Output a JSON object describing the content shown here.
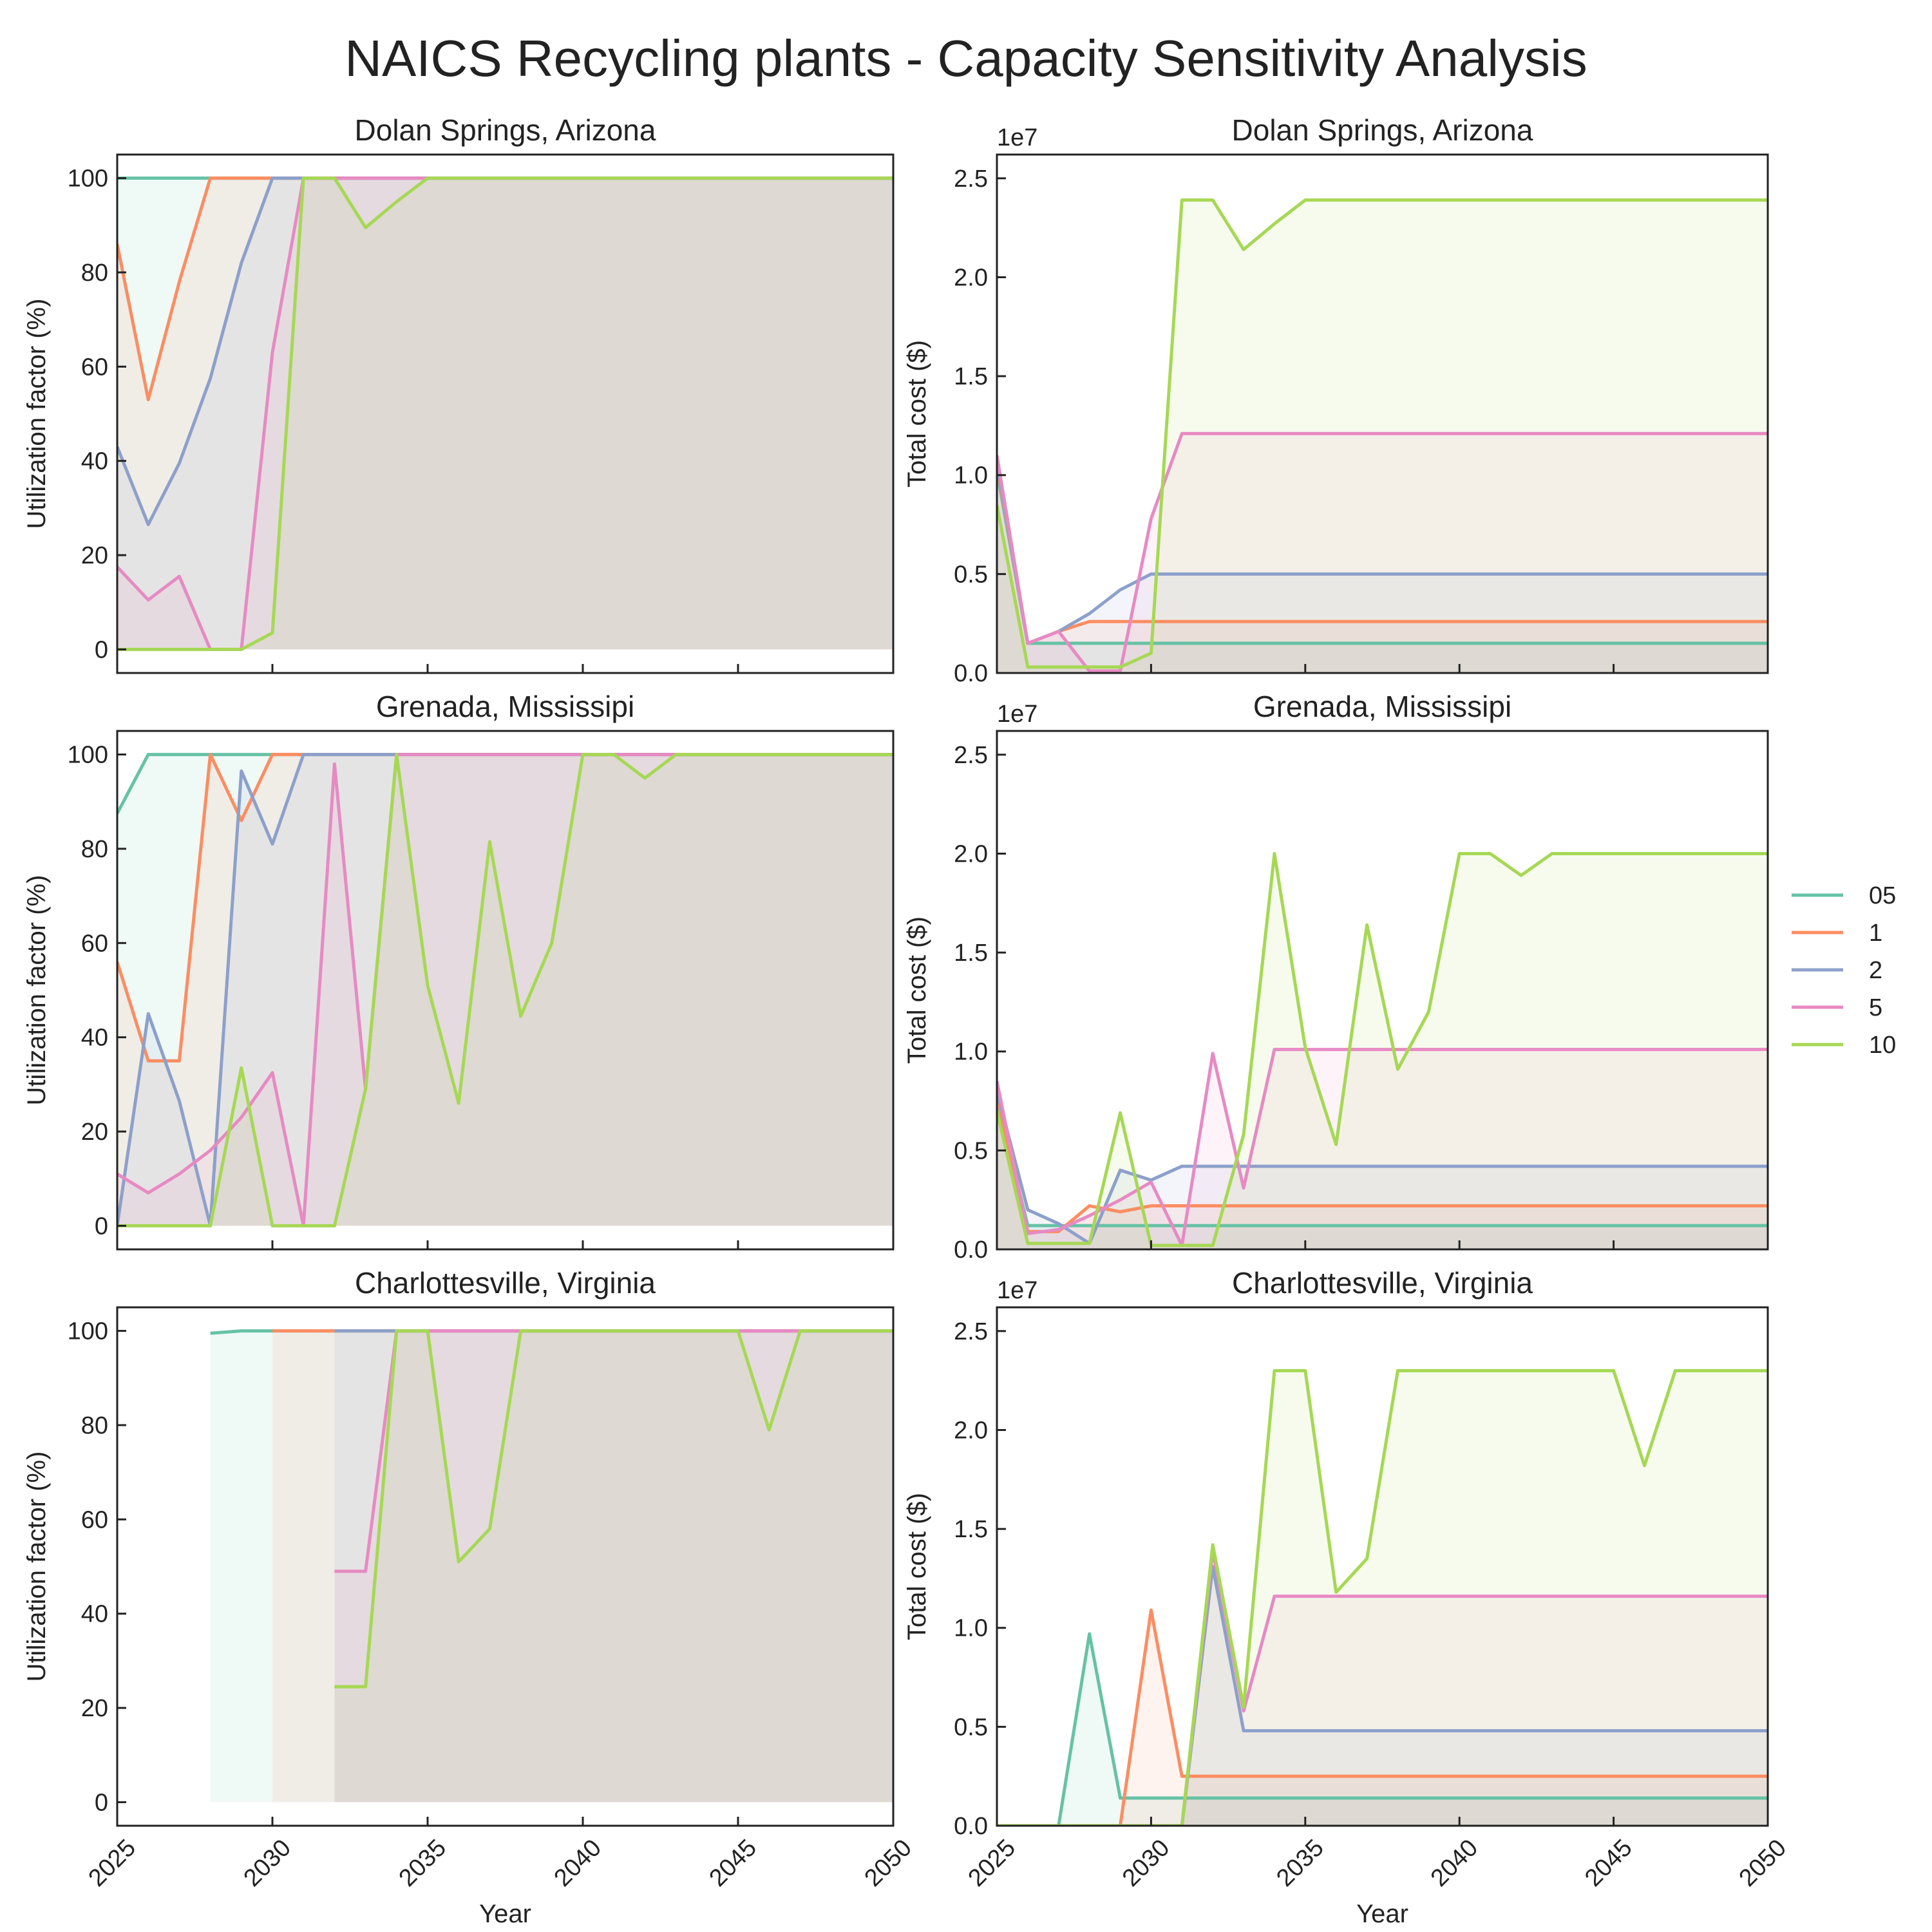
{
  "figure": {
    "title": "NAICS Recycling plants - Capacity Sensitivity Analysis"
  },
  "legend": {
    "placement": "right, outside"
  },
  "chart_data": [
    {
      "type": "area",
      "title": "Dolan Springs, Arizona",
      "xlabel": "",
      "ylabel": "Utilization factor (%)",
      "xlim": [
        2025,
        2050
      ],
      "ylim": [
        -5,
        105
      ],
      "xticks": [
        2025,
        2030,
        2035,
        2040,
        2045,
        2050
      ],
      "show_xtick_labels": false,
      "yticks": [
        0,
        20,
        40,
        60,
        80,
        100
      ],
      "offset_text": "",
      "grid": false,
      "series": [
        {
          "name": "05",
          "color": "#66c2a5",
          "x": [
            2025,
            2050
          ],
          "y": [
            100,
            100
          ]
        },
        {
          "name": "1",
          "color": "#fc8d62",
          "x": [
            2025,
            2026,
            2027,
            2028,
            2029,
            2030,
            2050
          ],
          "y": [
            86,
            53,
            78,
            100,
            100,
            100,
            100
          ]
        },
        {
          "name": "2",
          "color": "#8da0cb",
          "x": [
            2025,
            2026,
            2027,
            2028,
            2029,
            2030,
            2031,
            2050
          ],
          "y": [
            43,
            26.5,
            39.5,
            57.5,
            82,
            100,
            100,
            100
          ]
        },
        {
          "name": "5",
          "color": "#e78ac3",
          "x": [
            2025,
            2026,
            2027,
            2028,
            2029,
            2030,
            2031,
            2032,
            2050
          ],
          "y": [
            17.5,
            10.5,
            15.5,
            0,
            0,
            63,
            100,
            100,
            100
          ]
        },
        {
          "name": "10",
          "color": "#a6d854",
          "x": [
            2025,
            2026,
            2027,
            2028,
            2029,
            2030,
            2031,
            2032,
            2033,
            2034,
            2035,
            2050
          ],
          "y": [
            0,
            0,
            0,
            0,
            0,
            3.5,
            100,
            100,
            89.5,
            95,
            100,
            100
          ]
        }
      ]
    },
    {
      "type": "area",
      "title": "Dolan Springs, Arizona",
      "xlabel": "",
      "ylabel": "Total cost ($)",
      "xlim": [
        2025,
        2050
      ],
      "ylim": [
        0,
        2.62
      ],
      "xticks": [
        2025,
        2030,
        2035,
        2040,
        2045,
        2050
      ],
      "show_xtick_labels": false,
      "yticks": [
        0.0,
        0.5,
        1.0,
        1.5,
        2.0,
        2.5
      ],
      "offset_text": "1e7",
      "grid": false,
      "series": [
        {
          "name": "05",
          "color": "#66c2a5",
          "x": [
            2025,
            2026,
            2050
          ],
          "y": [
            1.02,
            0.15,
            0.15
          ]
        },
        {
          "name": "1",
          "color": "#fc8d62",
          "x": [
            2025,
            2026,
            2027,
            2028,
            2050
          ],
          "y": [
            1.05,
            0.15,
            0.21,
            0.26,
            0.26
          ]
        },
        {
          "name": "2",
          "color": "#8da0cb",
          "x": [
            2025,
            2026,
            2027,
            2028,
            2029,
            2030,
            2050
          ],
          "y": [
            1.07,
            0.15,
            0.21,
            0.3,
            0.42,
            0.5,
            0.5
          ]
        },
        {
          "name": "5",
          "color": "#e78ac3",
          "x": [
            2025,
            2026,
            2027,
            2028,
            2029,
            2030,
            2031,
            2050
          ],
          "y": [
            1.1,
            0.15,
            0.21,
            0.01,
            0.01,
            0.78,
            1.21,
            1.21
          ]
        },
        {
          "name": "10",
          "color": "#a6d854",
          "x": [
            2025,
            2026,
            2027,
            2028,
            2029,
            2030,
            2031,
            2032,
            2033,
            2034,
            2035,
            2050
          ],
          "y": [
            0.85,
            0.03,
            0.03,
            0.03,
            0.03,
            0.1,
            2.39,
            2.39,
            2.14,
            2.27,
            2.39,
            2.39
          ]
        }
      ]
    },
    {
      "type": "area",
      "title": "Grenada, Mississipi",
      "xlabel": "",
      "ylabel": "Utilization factor (%)",
      "xlim": [
        2025,
        2050
      ],
      "ylim": [
        -5,
        105
      ],
      "xticks": [
        2025,
        2030,
        2035,
        2040,
        2045,
        2050
      ],
      "show_xtick_labels": false,
      "yticks": [
        0,
        20,
        40,
        60,
        80,
        100
      ],
      "offset_text": "",
      "grid": false,
      "series": [
        {
          "name": "05",
          "color": "#66c2a5",
          "x": [
            2025,
            2026,
            2050
          ],
          "y": [
            87.5,
            100,
            100
          ]
        },
        {
          "name": "1",
          "color": "#fc8d62",
          "x": [
            2025,
            2026,
            2027,
            2028,
            2029,
            2030,
            2031,
            2050
          ],
          "y": [
            56,
            35,
            35,
            100,
            86,
            100,
            100,
            100
          ]
        },
        {
          "name": "2",
          "color": "#8da0cb",
          "x": [
            2025,
            2026,
            2027,
            2028,
            2029,
            2030,
            2031,
            2032,
            2050
          ],
          "y": [
            0,
            45,
            26.5,
            0,
            96.5,
            81,
            100,
            100,
            100
          ]
        },
        {
          "name": "5",
          "color": "#e78ac3",
          "x": [
            2025,
            2026,
            2027,
            2028,
            2029,
            2030,
            2031,
            2032,
            2033,
            2034,
            2050
          ],
          "y": [
            11,
            7,
            11,
            16,
            23,
            32.5,
            0,
            98,
            29,
            100,
            100
          ]
        },
        {
          "name": "10",
          "color": "#a6d854",
          "x": [
            2025,
            2026,
            2027,
            2028,
            2029,
            2030,
            2031,
            2032,
            2033,
            2034,
            2035,
            2036,
            2037,
            2038,
            2039,
            2040,
            2041,
            2042,
            2043,
            2050
          ],
          "y": [
            0,
            0,
            0,
            0,
            33.5,
            0,
            0,
            0,
            29,
            100,
            51,
            26,
            81.5,
            44.5,
            60,
            100,
            100,
            95,
            100,
            100
          ]
        }
      ]
    },
    {
      "type": "area",
      "title": "Grenada, Mississipi",
      "xlabel": "",
      "ylabel": "Total cost ($)",
      "xlim": [
        2025,
        2050
      ],
      "ylim": [
        0,
        2.62
      ],
      "xticks": [
        2025,
        2030,
        2035,
        2040,
        2045,
        2050
      ],
      "show_xtick_labels": false,
      "yticks": [
        0.0,
        0.5,
        1.0,
        1.5,
        2.0,
        2.5
      ],
      "offset_text": "1e7",
      "grid": false,
      "series": [
        {
          "name": "05",
          "color": "#66c2a5",
          "x": [
            2025,
            2026,
            2050
          ],
          "y": [
            0.75,
            0.12,
            0.12
          ]
        },
        {
          "name": "1",
          "color": "#fc8d62",
          "x": [
            2025,
            2026,
            2027,
            2028,
            2029,
            2030,
            2050
          ],
          "y": [
            0.78,
            0.09,
            0.09,
            0.22,
            0.19,
            0.22,
            0.22
          ]
        },
        {
          "name": "2",
          "color": "#8da0cb",
          "x": [
            2025,
            2026,
            2027,
            2028,
            2029,
            2030,
            2031,
            2050
          ],
          "y": [
            0.8,
            0.2,
            0.13,
            0.03,
            0.4,
            0.35,
            0.42,
            0.42
          ]
        },
        {
          "name": "5",
          "color": "#e78ac3",
          "x": [
            2025,
            2026,
            2027,
            2028,
            2029,
            2030,
            2031,
            2032,
            2033,
            2034,
            2050
          ],
          "y": [
            0.85,
            0.08,
            0.1,
            0.17,
            0.25,
            0.34,
            0.02,
            0.99,
            0.31,
            1.01,
            1.01
          ]
        },
        {
          "name": "10",
          "color": "#a6d854",
          "x": [
            2025,
            2026,
            2027,
            2028,
            2029,
            2030,
            2031,
            2032,
            2033,
            2034,
            2035,
            2036,
            2037,
            2038,
            2039,
            2040,
            2041,
            2042,
            2043,
            2050
          ],
          "y": [
            0.7,
            0.03,
            0.03,
            0.03,
            0.69,
            0.02,
            0.02,
            0.02,
            0.58,
            2.0,
            1.02,
            0.53,
            1.64,
            0.91,
            1.2,
            2.0,
            2.0,
            1.89,
            2.0,
            2.0
          ]
        }
      ]
    },
    {
      "type": "area",
      "title": "Charlottesville, Virginia",
      "xlabel": "Year",
      "ylabel": "Utilization factor (%)",
      "xlim": [
        2025,
        2050
      ],
      "ylim": [
        -5,
        105
      ],
      "xticks": [
        2025,
        2030,
        2035,
        2040,
        2045,
        2050
      ],
      "show_xtick_labels": true,
      "yticks": [
        0,
        20,
        40,
        60,
        80,
        100
      ],
      "offset_text": "",
      "grid": false,
      "series": [
        {
          "name": "05",
          "color": "#66c2a5",
          "x": [
            2028,
            2029,
            2050
          ],
          "y": [
            99.5,
            100,
            100
          ]
        },
        {
          "name": "1",
          "color": "#fc8d62",
          "x": [
            2030,
            2050
          ],
          "y": [
            100,
            100
          ]
        },
        {
          "name": "2",
          "color": "#8da0cb",
          "x": [
            2032,
            2050
          ],
          "y": [
            100,
            100
          ]
        },
        {
          "name": "5",
          "color": "#e78ac3",
          "x": [
            2032,
            2033,
            2034,
            2050
          ],
          "y": [
            49,
            49,
            100,
            100
          ]
        },
        {
          "name": "10",
          "color": "#a6d854",
          "x": [
            2032,
            2033,
            2034,
            2035,
            2036,
            2037,
            2038,
            2045,
            2046,
            2047,
            2050
          ],
          "y": [
            24.5,
            24.5,
            100,
            100,
            51,
            58,
            100,
            100,
            79,
            100,
            100
          ]
        }
      ]
    },
    {
      "type": "area",
      "title": "Charlottesville, Virginia",
      "xlabel": "Year",
      "ylabel": "Total cost ($)",
      "xlim": [
        2025,
        2050
      ],
      "ylim": [
        0,
        2.62
      ],
      "xticks": [
        2025,
        2030,
        2035,
        2040,
        2045,
        2050
      ],
      "show_xtick_labels": true,
      "yticks": [
        0.0,
        0.5,
        1.0,
        1.5,
        2.0,
        2.5
      ],
      "offset_text": "1e7",
      "grid": false,
      "series": [
        {
          "name": "05",
          "color": "#66c2a5",
          "x": [
            2025,
            2027,
            2028,
            2029,
            2050
          ],
          "y": [
            0,
            0,
            0.97,
            0.14,
            0.14
          ]
        },
        {
          "name": "1",
          "color": "#fc8d62",
          "x": [
            2025,
            2029,
            2030,
            2031,
            2050
          ],
          "y": [
            0,
            0,
            1.09,
            0.25,
            0.25
          ]
        },
        {
          "name": "2",
          "color": "#8da0cb",
          "x": [
            2025,
            2031,
            2032,
            2033,
            2050
          ],
          "y": [
            0,
            0,
            1.31,
            0.48,
            0.48
          ]
        },
        {
          "name": "5",
          "color": "#e78ac3",
          "x": [
            2025,
            2031,
            2032,
            2033,
            2034,
            2050
          ],
          "y": [
            0,
            0,
            1.39,
            0.58,
            1.16,
            1.16
          ]
        },
        {
          "name": "10",
          "color": "#a6d854",
          "x": [
            2025,
            2031,
            2032,
            2033,
            2034,
            2035,
            2036,
            2037,
            2038,
            2045,
            2046,
            2047,
            2050
          ],
          "y": [
            0,
            0,
            1.42,
            0.6,
            2.3,
            2.3,
            1.18,
            1.35,
            2.3,
            2.3,
            1.82,
            2.3,
            2.3
          ]
        }
      ]
    }
  ]
}
